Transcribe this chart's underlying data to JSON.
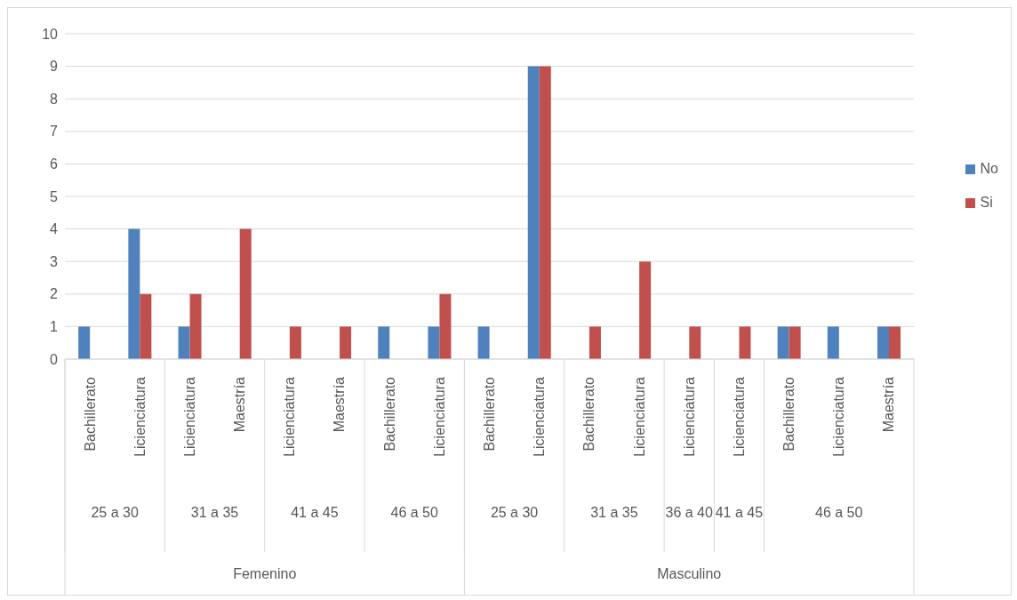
{
  "chart_data": {
    "type": "bar",
    "categories": [
      "Bachillerato",
      "Licienciatura",
      "Licienciatura",
      "Maestría",
      "Licienciatura",
      "Maestría",
      "Bachillerato",
      "Licienciatura",
      "Bachillerato",
      "Licienciatura",
      "Bachillerato",
      "Licienciatura",
      "Licienciatura",
      "Licienciatura",
      "Bachillerato",
      "Licienciatura",
      "Maestría"
    ],
    "series": [
      {
        "name": "No",
        "color": "#4f81bd",
        "values": [
          1,
          4,
          1,
          0,
          0,
          0,
          1,
          1,
          1,
          9,
          0,
          0,
          0,
          0,
          1,
          1,
          1
        ]
      },
      {
        "name": "Si",
        "color": "#c0504d",
        "values": [
          0,
          2,
          2,
          4,
          1,
          1,
          0,
          2,
          0,
          9,
          1,
          3,
          1,
          1,
          1,
          0,
          1
        ]
      }
    ],
    "ylim": [
      0,
      10
    ],
    "yticks": [
      0,
      1,
      2,
      3,
      4,
      5,
      6,
      7,
      8,
      9,
      10
    ],
    "grid": "y",
    "legend": "right",
    "annotations": [
      "25 a 30",
      "31 a 35",
      "41 a 45",
      "46 a 50",
      "25 a 30",
      "31 a 35",
      "36 a 40",
      "41 a 45",
      "46 a 50",
      "Femenino",
      "Masculino"
    ]
  }
}
